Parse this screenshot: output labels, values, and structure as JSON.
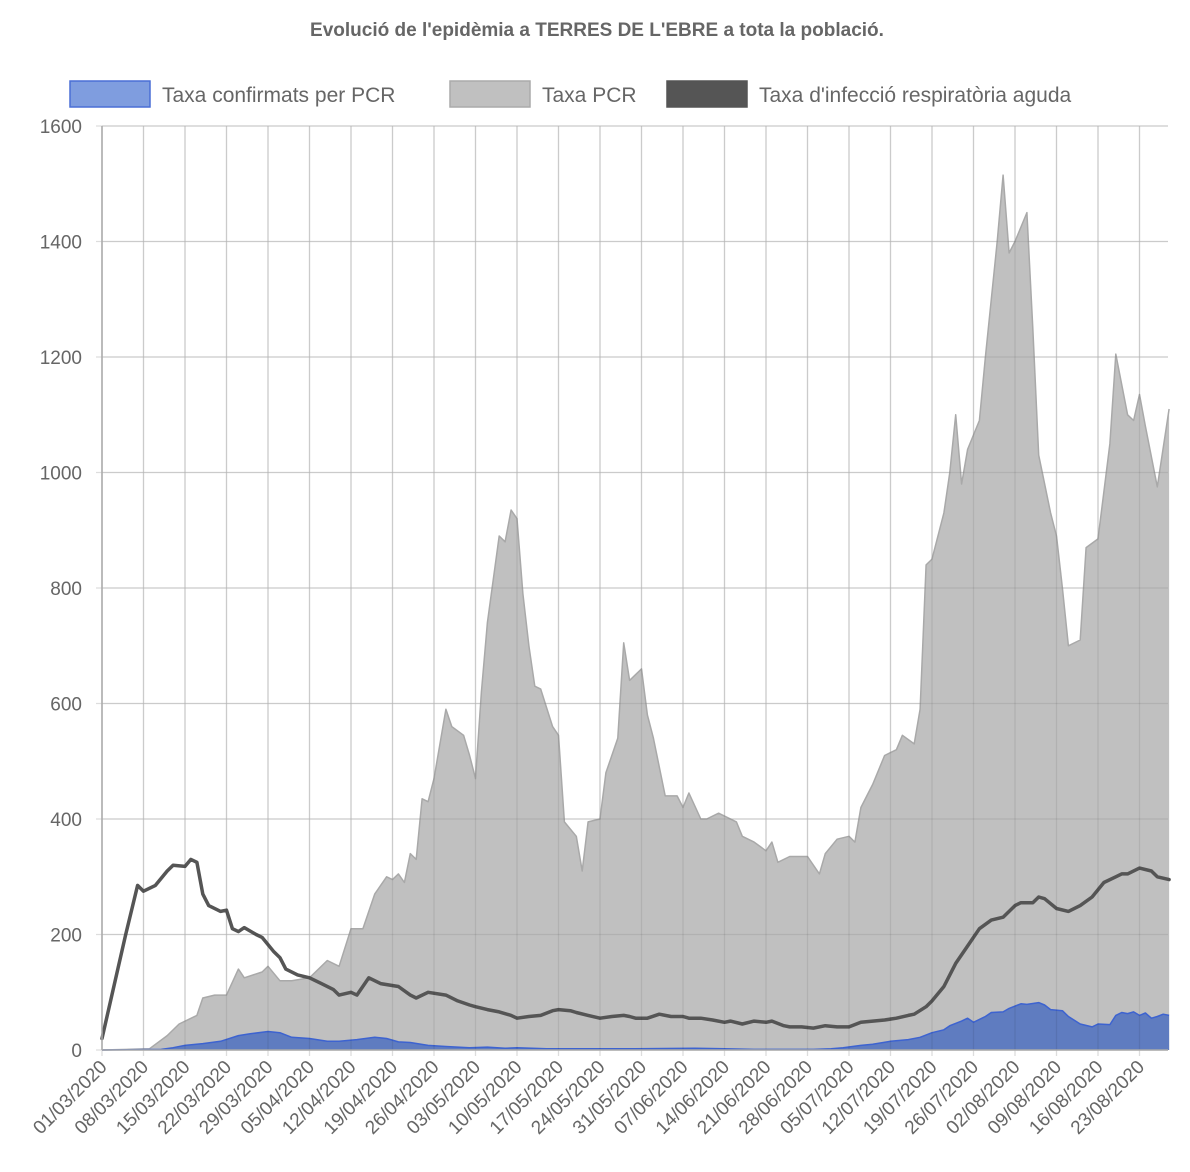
{
  "chart_data": {
    "type": "area",
    "title": "Evolució de l'epidèmia a TERRES DE L'EBRE a tota la població.",
    "xlabel": "",
    "ylabel": "",
    "ylim": [
      0,
      1600
    ],
    "yticks": [
      "0",
      "200",
      "400",
      "600",
      "800",
      "1000",
      "1200",
      "1400",
      "1600"
    ],
    "ytick_values": [
      0,
      200,
      400,
      600,
      800,
      1000,
      1200,
      1400,
      1600
    ],
    "start_date": "01/03/2020",
    "x_day_range": [
      0,
      180
    ],
    "xticks": [
      "01/03/2020",
      "08/03/2020",
      "15/03/2020",
      "22/03/2020",
      "29/03/2020",
      "05/04/2020",
      "12/04/2020",
      "19/04/2020",
      "26/04/2020",
      "03/05/2020",
      "10/05/2020",
      "17/05/2020",
      "24/05/2020",
      "31/05/2020",
      "07/06/2020",
      "14/06/2020",
      "21/06/2020",
      "28/06/2020",
      "05/07/2020",
      "12/07/2020",
      "19/07/2020",
      "26/07/2020",
      "02/08/2020",
      "09/08/2020",
      "16/08/2020",
      "23/08/2020"
    ],
    "grid": true,
    "legend_position": "top",
    "series": [
      {
        "name": "Taxa PCR",
        "color": "#c0c0c0",
        "stroke": "#a9a9a9",
        "kind": "area",
        "points": [
          [
            0,
            0
          ],
          [
            8,
            2
          ],
          [
            11,
            25
          ],
          [
            13,
            45
          ],
          [
            16,
            60
          ],
          [
            17,
            90
          ],
          [
            19,
            95
          ],
          [
            21,
            95
          ],
          [
            23,
            140
          ],
          [
            24,
            125
          ],
          [
            27,
            135
          ],
          [
            28,
            145
          ],
          [
            30,
            120
          ],
          [
            32,
            120
          ],
          [
            35,
            125
          ],
          [
            38,
            155
          ],
          [
            40,
            145
          ],
          [
            42,
            210
          ],
          [
            44,
            210
          ],
          [
            46,
            270
          ],
          [
            48,
            300
          ],
          [
            49,
            295
          ],
          [
            50,
            305
          ],
          [
            51,
            290
          ],
          [
            52,
            340
          ],
          [
            53,
            330
          ],
          [
            54,
            435
          ],
          [
            55,
            430
          ],
          [
            56,
            470
          ],
          [
            58,
            590
          ],
          [
            59,
            560
          ],
          [
            61,
            545
          ],
          [
            62,
            510
          ],
          [
            63,
            470
          ],
          [
            64,
            620
          ],
          [
            65,
            740
          ],
          [
            67,
            890
          ],
          [
            68,
            880
          ],
          [
            69,
            935
          ],
          [
            70,
            920
          ],
          [
            71,
            790
          ],
          [
            72,
            700
          ],
          [
            73,
            630
          ],
          [
            74,
            625
          ],
          [
            76,
            560
          ],
          [
            77,
            545
          ],
          [
            78,
            395
          ],
          [
            80,
            370
          ],
          [
            81,
            310
          ],
          [
            82,
            395
          ],
          [
            84,
            400
          ],
          [
            85,
            480
          ],
          [
            87,
            540
          ],
          [
            88,
            705
          ],
          [
            89,
            640
          ],
          [
            91,
            660
          ],
          [
            92,
            580
          ],
          [
            93,
            540
          ],
          [
            95,
            440
          ],
          [
            97,
            440
          ],
          [
            98,
            420
          ],
          [
            99,
            445
          ],
          [
            101,
            400
          ],
          [
            102,
            400
          ],
          [
            104,
            410
          ],
          [
            107,
            395
          ],
          [
            108,
            370
          ],
          [
            110,
            360
          ],
          [
            112,
            345
          ],
          [
            113,
            360
          ],
          [
            114,
            325
          ],
          [
            116,
            335
          ],
          [
            119,
            335
          ],
          [
            121,
            305
          ],
          [
            122,
            340
          ],
          [
            124,
            365
          ],
          [
            126,
            370
          ],
          [
            127,
            360
          ],
          [
            128,
            420
          ],
          [
            130,
            460
          ],
          [
            132,
            510
          ],
          [
            134,
            520
          ],
          [
            135,
            545
          ],
          [
            137,
            530
          ],
          [
            138,
            590
          ],
          [
            139,
            840
          ],
          [
            140,
            850
          ],
          [
            142,
            930
          ],
          [
            143,
            1000
          ],
          [
            144,
            1100
          ],
          [
            145,
            980
          ],
          [
            146,
            1040
          ],
          [
            148,
            1090
          ],
          [
            149,
            1200
          ],
          [
            151,
            1400
          ],
          [
            152,
            1515
          ],
          [
            153,
            1380
          ],
          [
            154,
            1400
          ],
          [
            156,
            1450
          ],
          [
            157,
            1250
          ],
          [
            158,
            1030
          ],
          [
            160,
            930
          ],
          [
            161,
            890
          ],
          [
            162,
            800
          ],
          [
            163,
            700
          ],
          [
            165,
            710
          ],
          [
            166,
            870
          ],
          [
            168,
            885
          ],
          [
            170,
            1050
          ],
          [
            171,
            1205
          ],
          [
            173,
            1100
          ],
          [
            174,
            1090
          ],
          [
            175,
            1135
          ],
          [
            176,
            1080
          ],
          [
            178,
            975
          ],
          [
            180,
            1110
          ]
        ]
      },
      {
        "name": "Taxa confirmats per PCR",
        "color": "#5a78c0",
        "stroke": "#3d63d0",
        "kind": "area",
        "points": [
          [
            0,
            0
          ],
          [
            10,
            1
          ],
          [
            12,
            4
          ],
          [
            14,
            8
          ],
          [
            17,
            11
          ],
          [
            20,
            15
          ],
          [
            23,
            25
          ],
          [
            25,
            28
          ],
          [
            28,
            32
          ],
          [
            30,
            30
          ],
          [
            32,
            22
          ],
          [
            35,
            20
          ],
          [
            38,
            15
          ],
          [
            40,
            15
          ],
          [
            43,
            18
          ],
          [
            46,
            22
          ],
          [
            48,
            20
          ],
          [
            50,
            14
          ],
          [
            52,
            13
          ],
          [
            55,
            8
          ],
          [
            58,
            6
          ],
          [
            62,
            4
          ],
          [
            65,
            5
          ],
          [
            68,
            3
          ],
          [
            70,
            4
          ],
          [
            75,
            2
          ],
          [
            80,
            2
          ],
          [
            90,
            2
          ],
          [
            100,
            3
          ],
          [
            105,
            2
          ],
          [
            110,
            1
          ],
          [
            120,
            1
          ],
          [
            123,
            2
          ],
          [
            125,
            4
          ],
          [
            128,
            8
          ],
          [
            130,
            10
          ],
          [
            133,
            15
          ],
          [
            136,
            18
          ],
          [
            138,
            22
          ],
          [
            140,
            30
          ],
          [
            142,
            35
          ],
          [
            143,
            42
          ],
          [
            145,
            50
          ],
          [
            146,
            55
          ],
          [
            147,
            48
          ],
          [
            149,
            58
          ],
          [
            150,
            65
          ],
          [
            152,
            66
          ],
          [
            153,
            72
          ],
          [
            155,
            80
          ],
          [
            156,
            79
          ],
          [
            158,
            82
          ],
          [
            159,
            78
          ],
          [
            160,
            70
          ],
          [
            162,
            68
          ],
          [
            163,
            58
          ],
          [
            165,
            45
          ],
          [
            167,
            40
          ],
          [
            168,
            45
          ],
          [
            170,
            44
          ],
          [
            171,
            60
          ],
          [
            172,
            65
          ],
          [
            173,
            63
          ],
          [
            174,
            66
          ],
          [
            175,
            60
          ],
          [
            176,
            64
          ],
          [
            177,
            55
          ],
          [
            178,
            58
          ],
          [
            179,
            62
          ],
          [
            180,
            60
          ]
        ]
      },
      {
        "name": "Taxa d'infecció respiratòria aguda",
        "color": "#555555",
        "stroke": "#555555",
        "kind": "line",
        "points": [
          [
            0,
            20
          ],
          [
            4,
            200
          ],
          [
            6,
            285
          ],
          [
            7,
            275
          ],
          [
            9,
            285
          ],
          [
            11,
            310
          ],
          [
            12,
            320
          ],
          [
            14,
            318
          ],
          [
            15,
            330
          ],
          [
            16,
            325
          ],
          [
            17,
            270
          ],
          [
            18,
            250
          ],
          [
            20,
            240
          ],
          [
            21,
            242
          ],
          [
            22,
            210
          ],
          [
            23,
            205
          ],
          [
            24,
            212
          ],
          [
            26,
            200
          ],
          [
            27,
            195
          ],
          [
            29,
            170
          ],
          [
            30,
            160
          ],
          [
            31,
            140
          ],
          [
            33,
            130
          ],
          [
            35,
            125
          ],
          [
            37,
            115
          ],
          [
            39,
            105
          ],
          [
            40,
            95
          ],
          [
            42,
            100
          ],
          [
            43,
            95
          ],
          [
            45,
            125
          ],
          [
            47,
            115
          ],
          [
            50,
            110
          ],
          [
            52,
            95
          ],
          [
            53,
            90
          ],
          [
            55,
            100
          ],
          [
            58,
            95
          ],
          [
            60,
            85
          ],
          [
            62,
            78
          ],
          [
            63,
            75
          ],
          [
            65,
            70
          ],
          [
            67,
            66
          ],
          [
            69,
            60
          ],
          [
            70,
            55
          ],
          [
            72,
            58
          ],
          [
            74,
            60
          ],
          [
            76,
            68
          ],
          [
            77,
            70
          ],
          [
            79,
            68
          ],
          [
            80,
            65
          ],
          [
            82,
            60
          ],
          [
            84,
            55
          ],
          [
            86,
            58
          ],
          [
            88,
            60
          ],
          [
            89,
            58
          ],
          [
            90,
            55
          ],
          [
            92,
            55
          ],
          [
            94,
            62
          ],
          [
            96,
            58
          ],
          [
            98,
            58
          ],
          [
            99,
            55
          ],
          [
            101,
            55
          ],
          [
            103,
            52
          ],
          [
            105,
            48
          ],
          [
            106,
            50
          ],
          [
            108,
            45
          ],
          [
            110,
            50
          ],
          [
            112,
            48
          ],
          [
            113,
            50
          ],
          [
            115,
            42
          ],
          [
            116,
            40
          ],
          [
            118,
            40
          ],
          [
            120,
            38
          ],
          [
            122,
            42
          ],
          [
            124,
            40
          ],
          [
            126,
            40
          ],
          [
            128,
            48
          ],
          [
            130,
            50
          ],
          [
            132,
            52
          ],
          [
            134,
            55
          ],
          [
            136,
            60
          ],
          [
            137,
            62
          ],
          [
            139,
            75
          ],
          [
            140,
            85
          ],
          [
            142,
            110
          ],
          [
            144,
            150
          ],
          [
            146,
            180
          ],
          [
            148,
            210
          ],
          [
            150,
            225
          ],
          [
            152,
            230
          ],
          [
            154,
            250
          ],
          [
            155,
            255
          ],
          [
            157,
            255
          ],
          [
            158,
            265
          ],
          [
            159,
            262
          ],
          [
            161,
            245
          ],
          [
            163,
            240
          ],
          [
            165,
            250
          ],
          [
            167,
            265
          ],
          [
            169,
            290
          ],
          [
            171,
            300
          ],
          [
            172,
            305
          ],
          [
            173,
            305
          ],
          [
            175,
            315
          ],
          [
            177,
            310
          ],
          [
            178,
            300
          ],
          [
            180,
            295
          ]
        ]
      }
    ]
  }
}
